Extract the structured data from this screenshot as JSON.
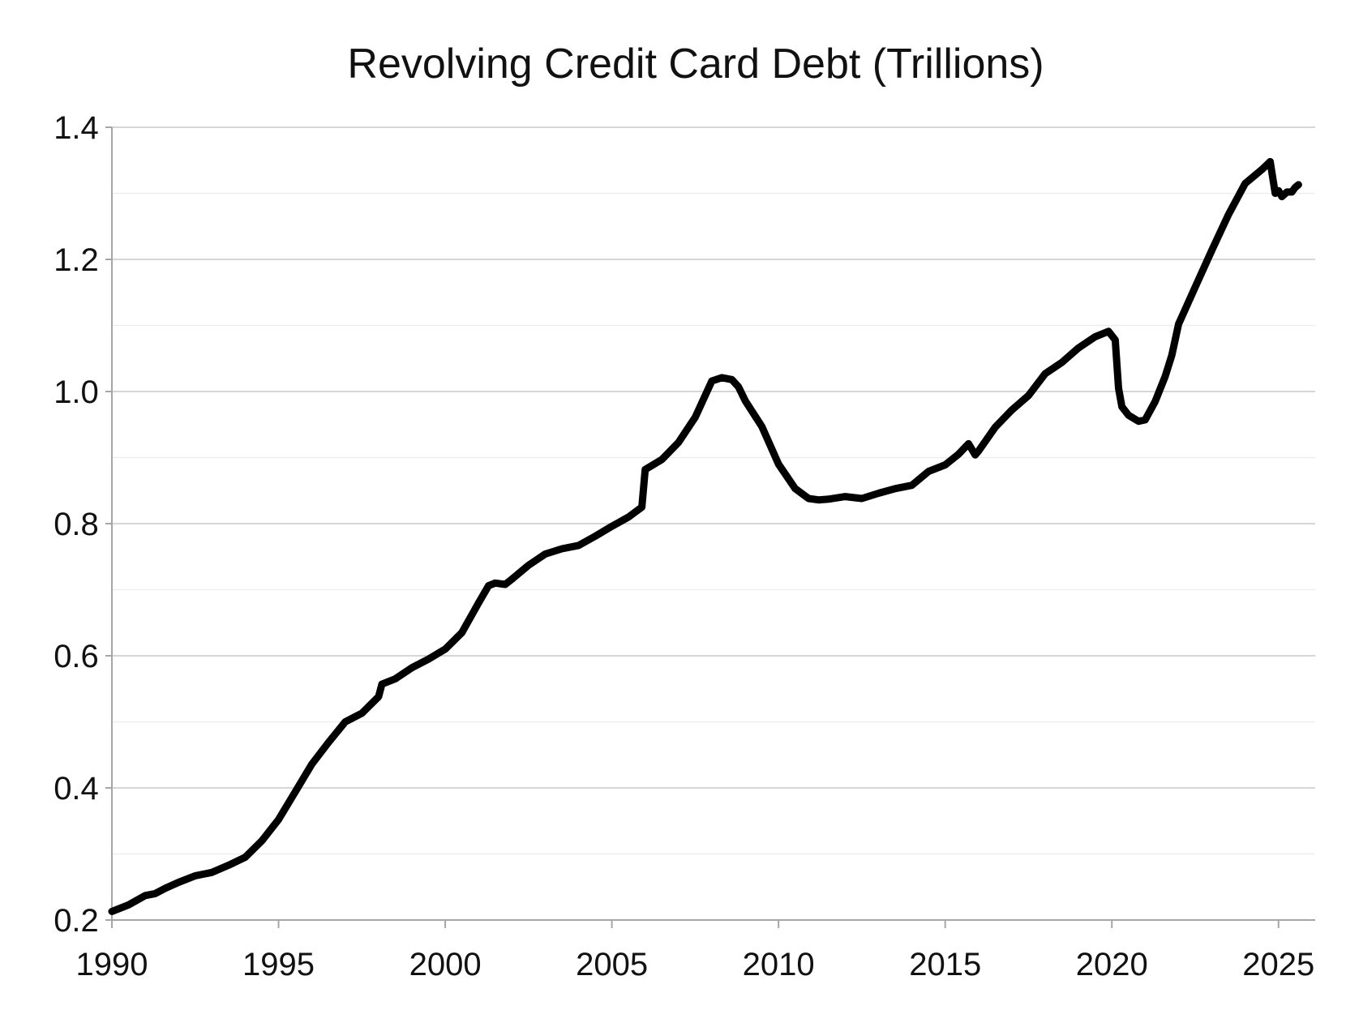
{
  "chart_data": {
    "type": "line",
    "title": "Revolving Credit Card Debt (Trillions)",
    "xlabel": "",
    "ylabel": "",
    "xlim": [
      1990,
      2026.1
    ],
    "ylim": [
      0.2,
      1.4
    ],
    "x_ticks": [
      1990,
      1995,
      2000,
      2005,
      2010,
      2015,
      2020,
      2025
    ],
    "x_tick_labels": [
      "1990",
      "1995",
      "2000",
      "2005",
      "2010",
      "2015",
      "2020",
      "2025"
    ],
    "y_ticks": [
      0.2,
      0.4,
      0.6,
      0.8,
      1.0,
      1.2,
      1.4
    ],
    "y_tick_labels": [
      "0.2",
      "0.4",
      "0.6",
      "0.8",
      "1.0",
      "1.2",
      "1.4"
    ],
    "y_minor_ticks": [
      0.3,
      0.5,
      0.7,
      0.9,
      1.1,
      1.3
    ],
    "grid": true,
    "legend": "none",
    "series": [
      {
        "name": "Revolving Credit Card Debt",
        "color": "#000000",
        "x": [
          1990.0,
          1990.5,
          1991.0,
          1991.3,
          1991.6,
          1992.0,
          1992.5,
          1993.0,
          1993.5,
          1994.0,
          1994.5,
          1995.0,
          1995.5,
          1996.0,
          1996.5,
          1997.0,
          1997.5,
          1998.0,
          1998.1,
          1998.5,
          1999.0,
          1999.5,
          2000.0,
          2000.5,
          2001.0,
          2001.3,
          2001.5,
          2001.8,
          2002.0,
          2002.5,
          2003.0,
          2003.5,
          2004.0,
          2004.5,
          2005.0,
          2005.5,
          2005.9,
          2006.0,
          2006.5,
          2007.0,
          2007.5,
          2008.0,
          2008.3,
          2008.6,
          2008.8,
          2009.0,
          2009.5,
          2010.0,
          2010.5,
          2010.9,
          2011.2,
          2011.5,
          2012.0,
          2012.5,
          2013.0,
          2013.5,
          2014.0,
          2014.5,
          2015.0,
          2015.4,
          2015.7,
          2015.9,
          2016.0,
          2016.5,
          2017.0,
          2017.5,
          2018.0,
          2018.5,
          2019.0,
          2019.5,
          2019.9,
          2020.1,
          2020.2,
          2020.3,
          2020.5,
          2020.8,
          2021.0,
          2021.3,
          2021.6,
          2021.8,
          2022.0,
          2022.5,
          2023.0,
          2023.5,
          2024.0,
          2024.5,
          2024.75,
          2024.9,
          2025.0,
          2025.1,
          2025.25,
          2025.4,
          2025.5,
          2025.6
        ],
        "values": [
          0.213,
          0.223,
          0.237,
          0.24,
          0.248,
          0.257,
          0.267,
          0.272,
          0.283,
          0.295,
          0.32,
          0.352,
          0.394,
          0.436,
          0.469,
          0.5,
          0.513,
          0.538,
          0.557,
          0.565,
          0.582,
          0.595,
          0.61,
          0.635,
          0.68,
          0.706,
          0.71,
          0.708,
          0.716,
          0.737,
          0.754,
          0.762,
          0.767,
          0.781,
          0.796,
          0.81,
          0.825,
          0.882,
          0.897,
          0.923,
          0.961,
          1.016,
          1.021,
          1.018,
          1.007,
          0.986,
          0.947,
          0.89,
          0.853,
          0.838,
          0.836,
          0.837,
          0.841,
          0.838,
          0.846,
          0.853,
          0.858,
          0.879,
          0.889,
          0.905,
          0.921,
          0.904,
          0.91,
          0.946,
          0.972,
          0.994,
          1.027,
          1.044,
          1.066,
          1.083,
          1.091,
          1.078,
          1.005,
          0.977,
          0.964,
          0.955,
          0.957,
          0.985,
          1.023,
          1.055,
          1.102,
          1.158,
          1.214,
          1.268,
          1.315,
          1.336,
          1.348,
          1.3,
          1.304,
          1.295,
          1.302,
          1.302,
          1.309,
          1.313
        ]
      }
    ]
  }
}
